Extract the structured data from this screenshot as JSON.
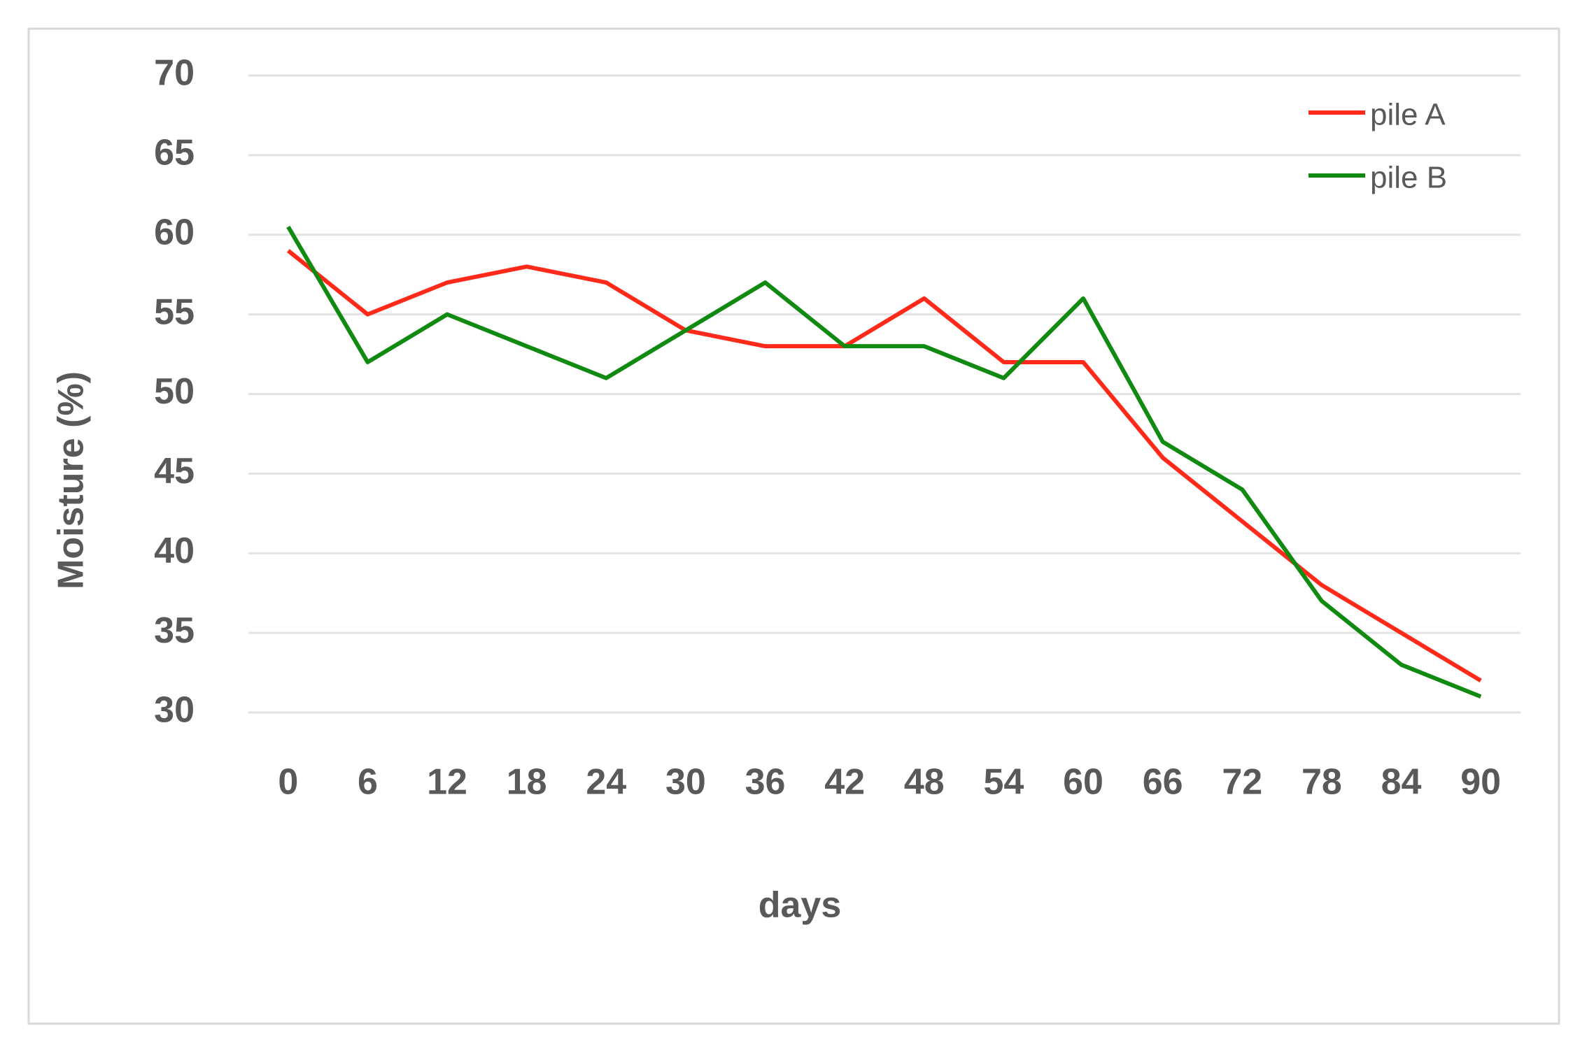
{
  "chart_data": {
    "type": "line",
    "x_label": "days",
    "y_label": "Moisture (%)",
    "categories": [
      0,
      6,
      12,
      18,
      24,
      30,
      36,
      42,
      48,
      54,
      60,
      66,
      72,
      78,
      84,
      90
    ],
    "series": [
      {
        "name": "pile A",
        "color": "#ff2a1a",
        "values": [
          59,
          55,
          57,
          58,
          57,
          54,
          53,
          53,
          56,
          52,
          52,
          46,
          42,
          38,
          35,
          32
        ]
      },
      {
        "name": "pile B",
        "color": "#118a11",
        "values": [
          60.5,
          52,
          55,
          53,
          51,
          54,
          57,
          53,
          53,
          51,
          56,
          47,
          44,
          37,
          33,
          31
        ]
      }
    ],
    "ylim": [
      30,
      70
    ],
    "yticks": [
      30,
      35,
      40,
      45,
      50,
      55,
      60,
      65,
      70
    ],
    "grid": true,
    "legend": "upper right"
  }
}
